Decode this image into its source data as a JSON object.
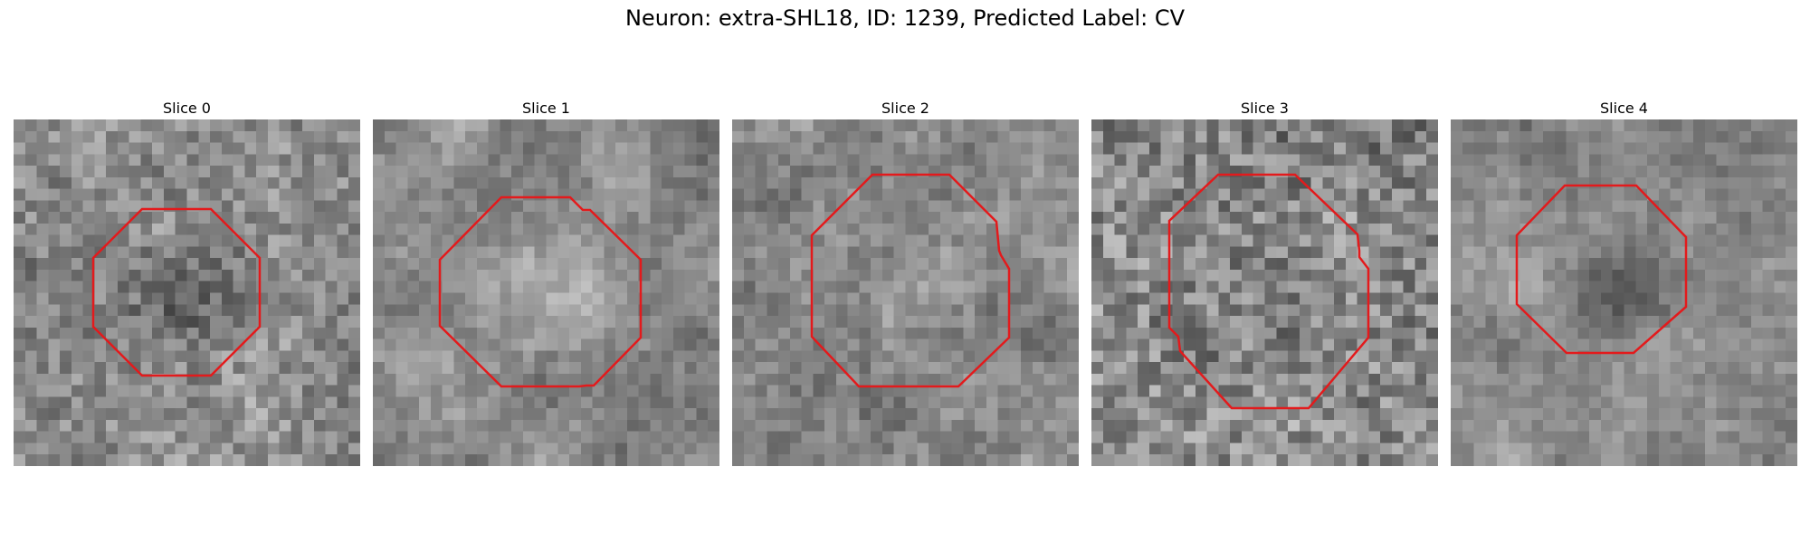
{
  "title": "Neuron: extra-SHL18, ID: 1239, Predicted Label: CV",
  "colors": {
    "contour": "#e31a1c",
    "background": "#ffffff"
  },
  "panels": [
    {
      "title": "Slice 0"
    },
    {
      "title": "Slice 1"
    },
    {
      "title": "Slice 2"
    },
    {
      "title": "Slice 3"
    },
    {
      "title": "Slice 4"
    }
  ]
}
